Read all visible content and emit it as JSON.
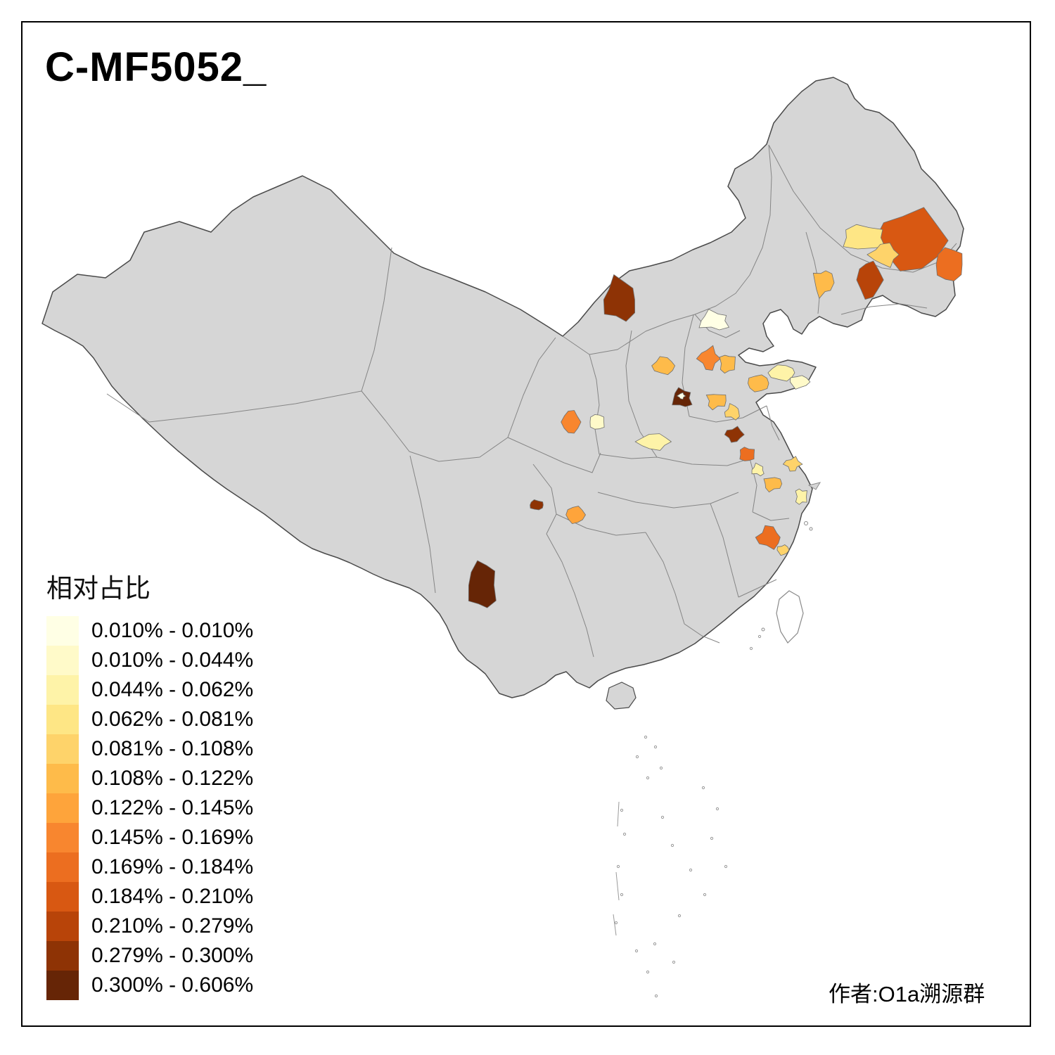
{
  "page": {
    "title": "C-MF5052_",
    "author": "作者:O1a溯源群"
  },
  "chart_data": {
    "type": "choropleth",
    "map": "China, prefecture-level regions",
    "title": "C-MF5052_",
    "legend_title": "相对占比",
    "legend_position": "bottom-left",
    "base_region_color": "#D6D6D6",
    "class_breaks_pct": [
      0.01,
      0.01,
      0.044,
      0.062,
      0.081,
      0.108,
      0.122,
      0.145,
      0.169,
      0.184,
      0.21,
      0.279,
      0.3,
      0.606
    ],
    "classes": [
      {
        "label": "0.010% - 0.010%",
        "color": "#FFFFE5"
      },
      {
        "label": "0.010% - 0.044%",
        "color": "#FFFAC9"
      },
      {
        "label": "0.044% - 0.062%",
        "color": "#FEF3A8"
      },
      {
        "label": "0.062% - 0.081%",
        "color": "#FEE685"
      },
      {
        "label": "0.081% - 0.108%",
        "color": "#FED36A"
      },
      {
        "label": "0.108% - 0.122%",
        "color": "#FEBB4A"
      },
      {
        "label": "0.122% - 0.145%",
        "color": "#FEA43B"
      },
      {
        "label": "0.145% - 0.169%",
        "color": "#F8862F"
      },
      {
        "label": "0.169% - 0.184%",
        "color": "#EC6E20"
      },
      {
        "label": "0.184% - 0.210%",
        "color": "#D85812"
      },
      {
        "label": "0.210% - 0.279%",
        "color": "#B84409"
      },
      {
        "label": "0.279% - 0.300%",
        "color": "#8E3305"
      },
      {
        "label": "0.300% - 0.606%",
        "color": "#662506"
      }
    ],
    "regions": [
      {
        "location": "inner-mongolia-central",
        "class_index": 11,
        "value_range": "0.279% - 0.300%"
      },
      {
        "location": "heilongjiang-central",
        "class_index": 9,
        "value_range": "0.184% - 0.210%"
      },
      {
        "location": "heilongjiang-east",
        "class_index": 8,
        "value_range": "0.169% - 0.184%"
      },
      {
        "location": "jilin-east-dark",
        "class_index": 10,
        "value_range": "0.210% - 0.279%"
      },
      {
        "location": "heilongjiang-southwest-pale",
        "class_index": 3,
        "value_range": "0.062% - 0.081%"
      },
      {
        "location": "jilin-northwest",
        "class_index": 4,
        "value_range": "0.081% - 0.108%"
      },
      {
        "location": "liaoning-central",
        "class_index": 5,
        "value_range": "0.108% - 0.122%"
      },
      {
        "location": "beijing-pale",
        "class_index": 0,
        "value_range": "0.010% - 0.010%"
      },
      {
        "location": "hebei-central-orange",
        "class_index": 7,
        "value_range": "0.145% - 0.169%"
      },
      {
        "location": "hebei-south",
        "class_index": 5,
        "value_range": "0.108% - 0.122%"
      },
      {
        "location": "shanxi-central",
        "class_index": 5,
        "value_range": "0.108% - 0.122%"
      },
      {
        "location": "shandong-west",
        "class_index": 5,
        "value_range": "0.108% - 0.122%"
      },
      {
        "location": "shandong-north-pale",
        "class_index": 2,
        "value_range": "0.044% - 0.062%"
      },
      {
        "location": "shandong-peninsula-pale",
        "class_index": 1,
        "value_range": "0.010% - 0.044%"
      },
      {
        "location": "henan-north-dark",
        "class_index": 12,
        "value_range": "0.300% - 0.606%"
      },
      {
        "location": "henan-north-core-pale",
        "class_index": 0,
        "value_range": "0.010% - 0.010%"
      },
      {
        "location": "henan-central",
        "class_index": 5,
        "value_range": "0.108% - 0.122%"
      },
      {
        "location": "henan-east",
        "class_index": 4,
        "value_range": "0.081% - 0.108%"
      },
      {
        "location": "henan-south-dark",
        "class_index": 11,
        "value_range": "0.279% - 0.300%"
      },
      {
        "location": "anhui-north",
        "class_index": 8,
        "value_range": "0.169% - 0.184%"
      },
      {
        "location": "shaanxi-central",
        "class_index": 7,
        "value_range": "0.145% - 0.169%"
      },
      {
        "location": "shaanxi-east-pale",
        "class_index": 1,
        "value_range": "0.010% - 0.044%"
      },
      {
        "location": "gansu-southeast-pale",
        "class_index": 2,
        "value_range": "0.044% - 0.062%"
      },
      {
        "location": "jiangsu-north",
        "class_index": 5,
        "value_range": "0.108% - 0.122%"
      },
      {
        "location": "jiangsu-central-pale",
        "class_index": 2,
        "value_range": "0.044% - 0.062%"
      },
      {
        "location": "jiangsu-east",
        "class_index": 4,
        "value_range": "0.081% - 0.108%"
      },
      {
        "location": "shanghai-coast-pale",
        "class_index": 2,
        "value_range": "0.044% - 0.062%"
      },
      {
        "location": "zhejiang-fujian-orange",
        "class_index": 8,
        "value_range": "0.169% - 0.184%"
      },
      {
        "location": "zhejiang-south",
        "class_index": 4,
        "value_range": "0.081% - 0.108%"
      },
      {
        "location": "chongqing-dark",
        "class_index": 11,
        "value_range": "0.279% - 0.300%"
      },
      {
        "location": "guizhou-north",
        "class_index": 6,
        "value_range": "0.122% - 0.145%"
      },
      {
        "location": "yunnan-central-dark",
        "class_index": 12,
        "value_range": "0.300% - 0.606%"
      }
    ]
  }
}
